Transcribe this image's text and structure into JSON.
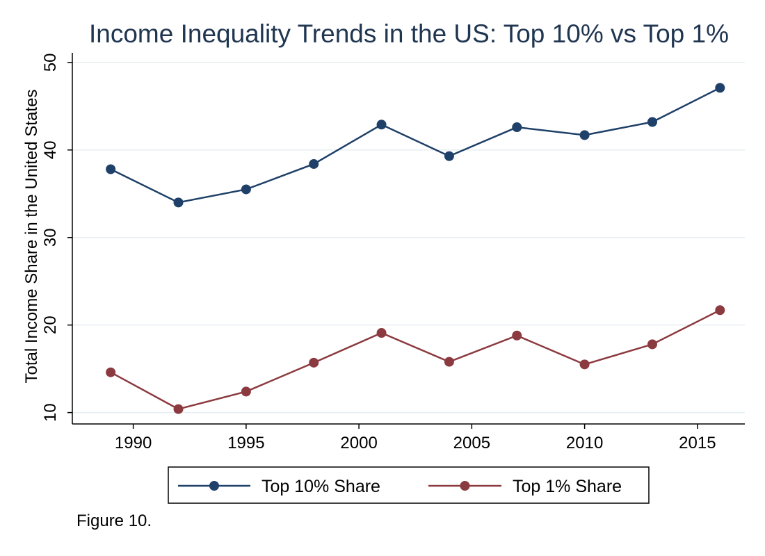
{
  "caption": "Figure 10.",
  "chart_data": {
    "type": "line",
    "title": "Income Inequality Trends in the US: Top 10% vs Top 1%",
    "xlabel": "",
    "ylabel": "Total Income Share in the United States",
    "x": [
      1989,
      1992,
      1995,
      1998,
      2001,
      2004,
      2007,
      2010,
      2013,
      2016
    ],
    "xlim": [
      1987.3,
      2017.1
    ],
    "ylim": [
      8.7,
      51.1
    ],
    "xticks": [
      1990,
      1995,
      2000,
      2005,
      2010,
      2015
    ],
    "yticks": [
      10,
      20,
      30,
      40,
      50
    ],
    "grid": true,
    "legend_position": "bottom",
    "series": [
      {
        "name": "Top 10% Share",
        "color": "#1f4068",
        "values": [
          37.8,
          34.0,
          35.5,
          38.4,
          42.9,
          39.3,
          42.6,
          41.7,
          43.2,
          47.1
        ]
      },
      {
        "name": "Top 1% Share",
        "color": "#8b3a3f",
        "values": [
          14.6,
          10.4,
          12.4,
          15.7,
          19.1,
          15.8,
          18.8,
          15.5,
          17.8,
          21.7
        ]
      }
    ]
  }
}
